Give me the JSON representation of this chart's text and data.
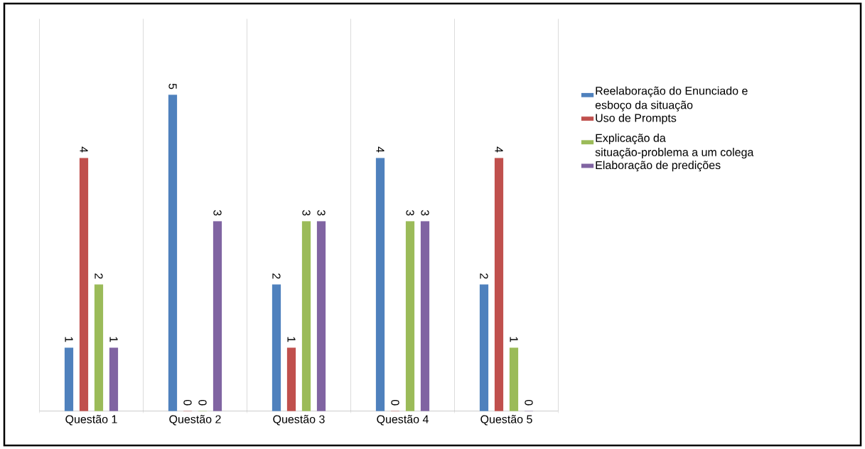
{
  "chart_data": {
    "type": "bar",
    "categories": [
      "Questão 1",
      "Questão 2",
      "Questão 3",
      "Questão 4",
      "Questão 5"
    ],
    "series": [
      {
        "name": "Reelaboração do Enunciado e esboço da situação",
        "color": "#4f81bd",
        "values": [
          1,
          5,
          2,
          4,
          2
        ]
      },
      {
        "name": "Uso de Prompts",
        "color": "#c0504d",
        "values": [
          4,
          0,
          1,
          0,
          4
        ]
      },
      {
        "name": "Explicação da situação-problema a um colega",
        "color": "#9bbb59",
        "values": [
          2,
          0,
          3,
          3,
          1
        ]
      },
      {
        "name": "Elaboração de predições",
        "color": "#8064a2",
        "values": [
          1,
          3,
          3,
          3,
          0
        ]
      }
    ],
    "data_labels": true,
    "grid": "x",
    "legend": "right",
    "tick_labels": "x"
  }
}
